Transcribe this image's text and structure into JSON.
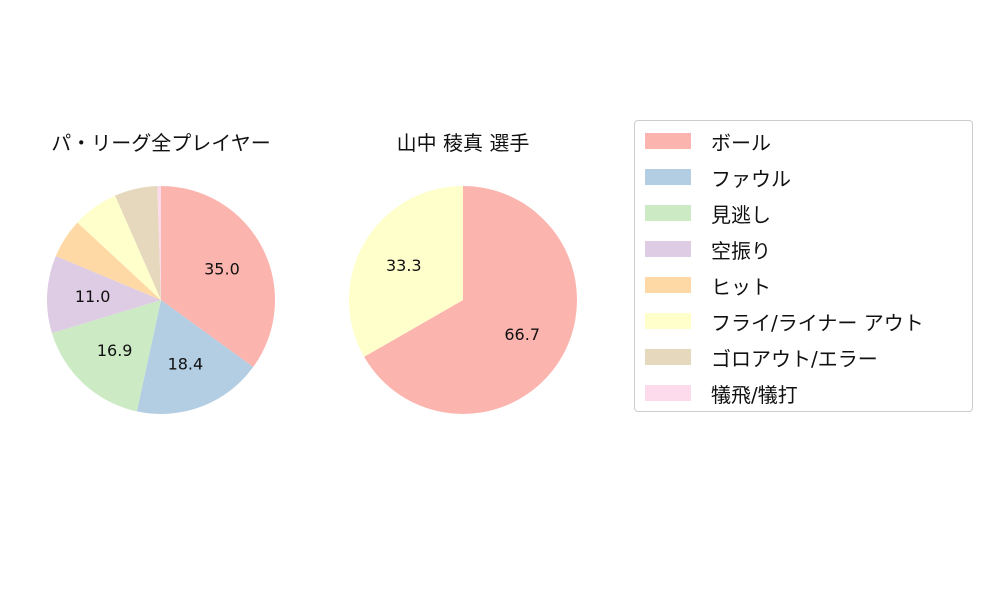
{
  "chart_data": [
    {
      "type": "pie",
      "title": "パ・リーグ全プレイヤー",
      "labels": [
        "ボール",
        "ファウル",
        "見逃し",
        "空振り",
        "ヒット",
        "フライ/ライナー アウト",
        "ゴロアウト/エラー",
        "犠飛/犠打"
      ],
      "values": [
        35.0,
        18.4,
        16.9,
        11.0,
        5.6,
        6.5,
        6.1,
        0.5
      ],
      "data_labels": [
        "35.0",
        "18.4",
        "16.9",
        "11.0",
        "",
        "",
        "",
        ""
      ]
    },
    {
      "type": "pie",
      "title": "山中 稜真  選手",
      "labels": [
        "ボール",
        "ファウル",
        "見逃し",
        "空振り",
        "ヒット",
        "フライ/ライナー アウト",
        "ゴロアウト/エラー",
        "犠飛/犠打"
      ],
      "values": [
        66.7,
        0,
        0,
        0,
        0,
        33.3,
        0,
        0
      ],
      "data_labels": [
        "66.7",
        "",
        "",
        "",
        "",
        "33.3",
        "",
        ""
      ]
    }
  ],
  "legend": {
    "placement": "right",
    "items": [
      {
        "label": "ボール",
        "color": "#fbb4ae"
      },
      {
        "label": "ファウル",
        "color": "#b3cde3"
      },
      {
        "label": "見逃し",
        "color": "#ccebc5"
      },
      {
        "label": "空振り",
        "color": "#decbe4"
      },
      {
        "label": "ヒット",
        "color": "#fed9a6"
      },
      {
        "label": "フライ/ライナー アウト",
        "color": "#ffffcc"
      },
      {
        "label": "ゴロアウト/エラー",
        "color": "#e5d8bd"
      },
      {
        "label": "犠飛/犠打",
        "color": "#fddaec"
      }
    ]
  }
}
